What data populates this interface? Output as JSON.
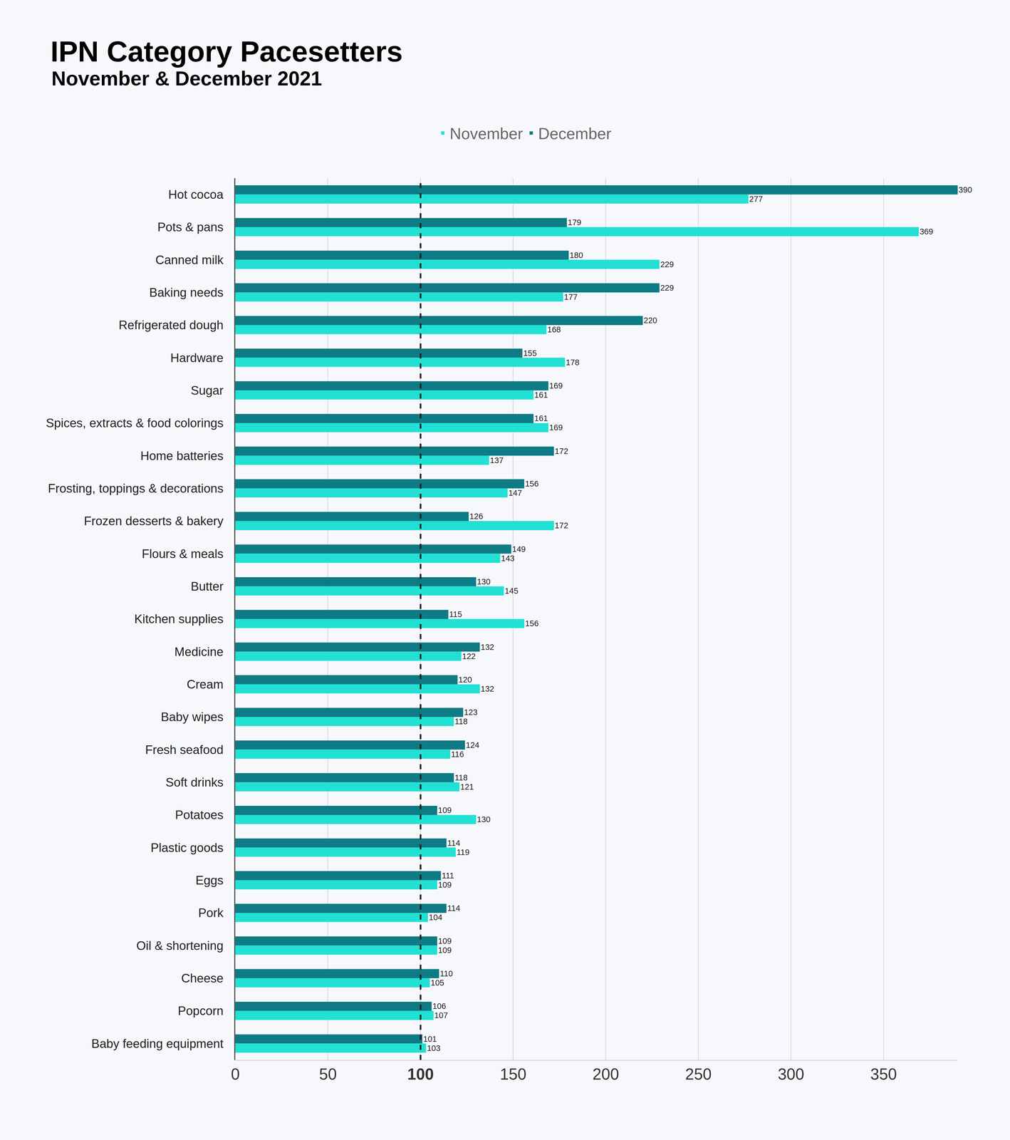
{
  "chart_data": {
    "type": "bar",
    "orientation": "horizontal",
    "title": "IPN Category Pacesetters",
    "subtitle": "November & December 2021",
    "categories": [
      "Hot cocoa",
      "Pots & pans",
      "Canned milk",
      "Baking needs",
      "Refrigerated dough",
      "Hardware",
      "Sugar",
      "Spices, extracts & food colorings",
      "Home batteries",
      "Frosting, toppings & decorations",
      "Frozen desserts & bakery",
      "Flours & meals",
      "Butter",
      "Kitchen supplies",
      "Medicine",
      "Cream",
      "Baby wipes",
      "Fresh seafood",
      "Soft drinks",
      "Potatoes",
      "Plastic goods",
      "Eggs",
      "Pork",
      "Oil & shortening",
      "Cheese",
      "Popcorn",
      "Baby feeding equipment"
    ],
    "series": [
      {
        "name": "November",
        "color": "#22e0d4",
        "values": [
          277,
          369,
          229,
          177,
          168,
          178,
          161,
          169,
          137,
          147,
          172,
          143,
          145,
          156,
          122,
          132,
          118,
          116,
          121,
          130,
          119,
          109,
          104,
          109,
          105,
          107,
          103
        ]
      },
      {
        "name": "December",
        "color": "#0e7b85",
        "values": [
          390,
          179,
          180,
          229,
          220,
          155,
          169,
          161,
          172,
          156,
          126,
          149,
          130,
          115,
          132,
          120,
          123,
          124,
          118,
          109,
          114,
          111,
          114,
          109,
          110,
          106,
          101
        ]
      }
    ],
    "xlim": [
      0,
      390
    ],
    "xticks": [
      0,
      50,
      100,
      150,
      200,
      250,
      300,
      350
    ],
    "reference_line": 100,
    "grid": true,
    "legend": "top",
    "data_labels": true
  }
}
